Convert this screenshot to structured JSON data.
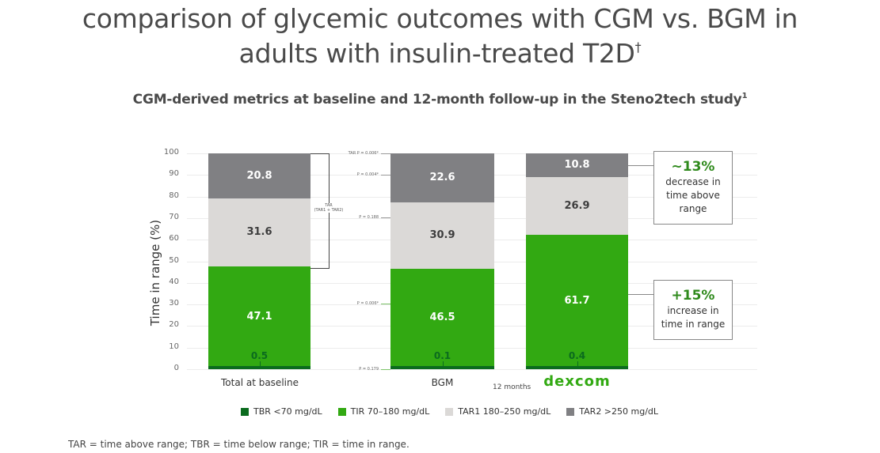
{
  "header": {
    "title_line1": "comparison of glycemic outcomes with CGM vs. BGM in",
    "title_line2": "adults with insulin-treated T2D",
    "title_sup": "†",
    "subtitle": "CGM-derived metrics at baseline and 12-month follow-up in the Steno2tech study",
    "subtitle_sup": "1"
  },
  "chart_data": {
    "type": "bar",
    "stacked": true,
    "title": "CGM-derived metrics at baseline and 12-month follow-up in the Steno2tech study",
    "xlabel": "",
    "ylabel": "Time in range (%)",
    "ylim": [
      0,
      100
    ],
    "yticks": [
      0,
      10,
      20,
      30,
      40,
      50,
      60,
      70,
      80,
      90,
      100
    ],
    "categories": [
      "Total at baseline",
      "BGM",
      "Dexcom"
    ],
    "category_group_label": "12 months",
    "series": [
      {
        "name": "TBR <70 mg/dL",
        "color": "#0b6b1e",
        "values": [
          0.5,
          0.1,
          0.4
        ]
      },
      {
        "name": "TIR 70–180 mg/dL",
        "color": "#32a912",
        "values": [
          47.1,
          46.5,
          61.7
        ]
      },
      {
        "name": "TAR1 180–250 mg/dL",
        "color": "#dbd9d7",
        "values": [
          31.6,
          30.9,
          26.9
        ]
      },
      {
        "name": "TAR2 >250 mg/dL",
        "color": "#808083",
        "values": [
          20.8,
          22.6,
          10.8
        ]
      }
    ],
    "annotations": {
      "bracket": {
        "line1": "TAR",
        "line2": "(TAR1 + TAR2)"
      },
      "p_values": [
        {
          "label": "TAR P = 0.006*",
          "at": 100
        },
        {
          "label": "P = 0.004*",
          "at": 90
        },
        {
          "label": "P = 0.188",
          "at": 70
        },
        {
          "label": "P = 0.006*",
          "at": 30
        },
        {
          "label": "P = 0.179",
          "at": 0
        }
      ],
      "callouts": [
        {
          "big": "~13%",
          "line1": "decrease in",
          "line2": "time above",
          "line3": "range"
        },
        {
          "big": "+15%",
          "line1": "increase in",
          "line2": "time in range"
        }
      ]
    },
    "legend_position": "bottom",
    "grid": true
  },
  "labels": {
    "baseline": "Total at baseline",
    "bgm": "BGM",
    "months": "12 months",
    "dexcom": "Dexcom"
  },
  "legend": [
    {
      "label": "TBR <70 mg/dL",
      "color": "#0b6b1e"
    },
    {
      "label": "TIR 70–180 mg/dL",
      "color": "#32a912"
    },
    {
      "label": "TAR1 180–250 mg/dL",
      "color": "#dbd9d7"
    },
    {
      "label": "TAR2 >250 mg/dL",
      "color": "#808083"
    }
  ],
  "footnote": "TAR = time above range; TBR = time below range; TIR = time in range."
}
